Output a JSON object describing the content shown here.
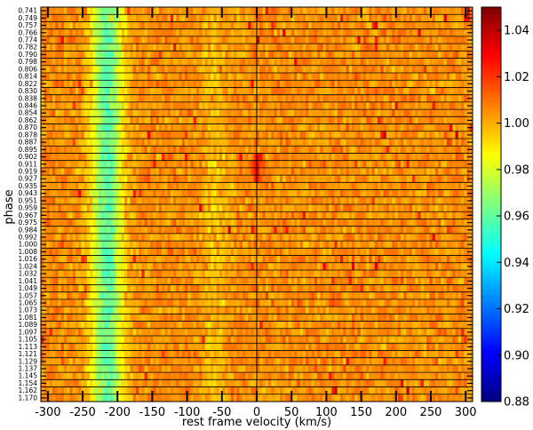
{
  "chart_data": {
    "type": "heatmap",
    "title": "",
    "xlabel": "rest frame velocity (km/s)",
    "ylabel": "phase",
    "xlim": [
      -310,
      310
    ],
    "x_ticks": [
      -300,
      -250,
      -200,
      -150,
      -100,
      -50,
      0,
      50,
      100,
      150,
      200,
      250,
      300
    ],
    "phases": [
      "0.741",
      "0.749",
      "0.757",
      "0.766",
      "0.774",
      "0.782",
      "0.790",
      "0.798",
      "0.806",
      "0.814",
      "0.822",
      "0.830",
      "0.838",
      "0.846",
      "0.854",
      "0.862",
      "0.870",
      "0.878",
      "0.887",
      "0.895",
      "0.902",
      "0.911",
      "0.919",
      "0.927",
      "0.935",
      "0.943",
      "0.951",
      "0.959",
      "0.967",
      "0.975",
      "0.984",
      "0.992",
      "1.000",
      "1.008",
      "1.016",
      "1.024",
      "1.032",
      "1.041",
      "1.049",
      "1.057",
      "1.065",
      "1.073",
      "1.081",
      "1.089",
      "1.097",
      "1.105",
      "1.113",
      "1.121",
      "1.129",
      "1.137",
      "1.145",
      "1.154",
      "1.162",
      "1.170"
    ],
    "colorbar": {
      "min": 0.88,
      "max": 1.05,
      "ticks": [
        "0.88",
        "0.90",
        "0.92",
        "0.94",
        "0.96",
        "0.98",
        "1.00",
        "1.02",
        "1.04"
      ],
      "colormap": "jet"
    },
    "features": {
      "absorption_center_kms": -215,
      "absorption_depth": 0.955,
      "emission_center_kms": 0,
      "emission_phase_range": [
        0.902,
        0.927
      ],
      "continuum": 1.0
    }
  }
}
